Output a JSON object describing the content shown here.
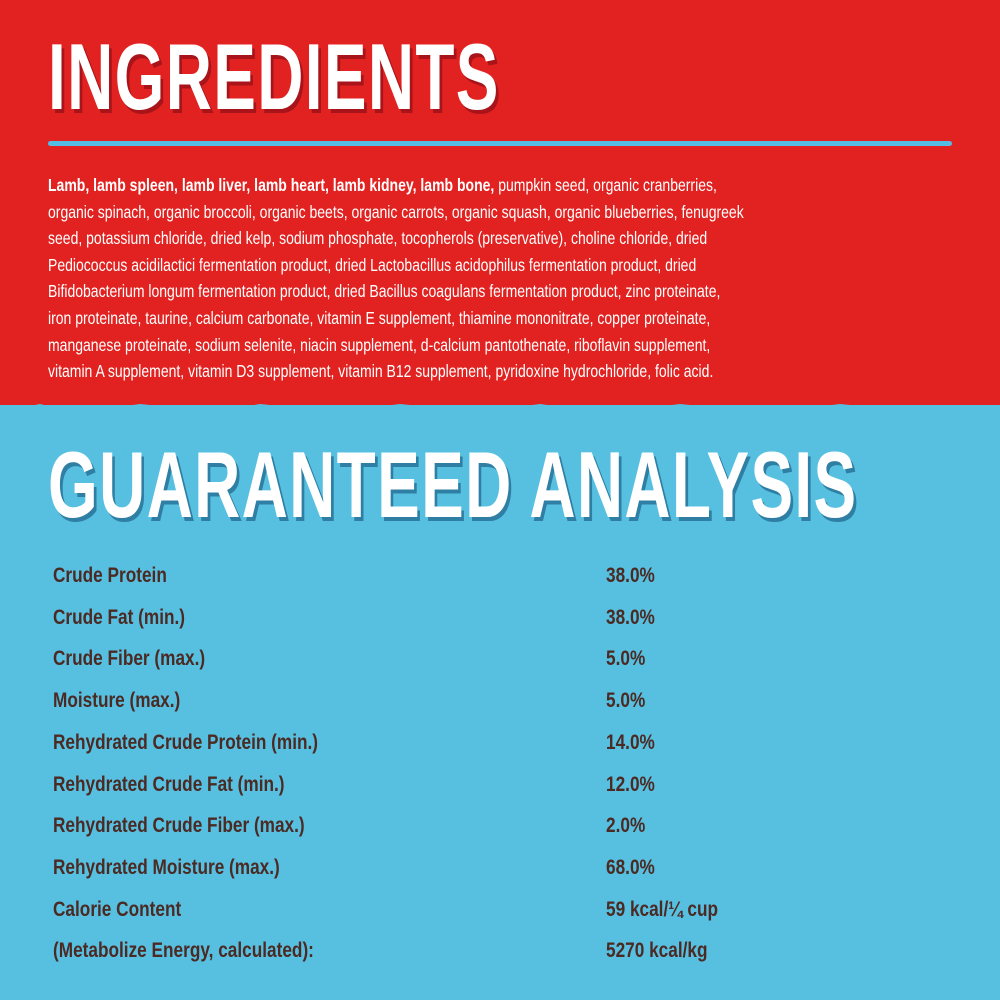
{
  "colors": {
    "top_background": "#e12220",
    "bottom_background": "#57c0e1",
    "value_text": "#4b2a24",
    "accent_rule": "#55bde3"
  },
  "ingredients": {
    "title": "INGREDIENTS",
    "bold_lead": "Lamb, lamb spleen, lamb liver, lamb heart, lamb kidney, lamb bone,",
    "lines": [
      " pumpkin seed, organic cranberries,",
      "organic spinach, organic broccoli, organic beets, organic carrots, organic squash, organic blueberries, fenugreek",
      "seed, potassium chloride, dried kelp, sodium phosphate, tocopherols (preservative), choline chloride, dried",
      "Pediococcus acidilactici fermentation product, dried Lactobacillus acidophilus fermentation product, dried",
      "Bifidobacterium longum fermentation product, dried Bacillus coagulans fermentation product, zinc proteinate,",
      "iron proteinate, taurine, calcium carbonate, vitamin E supplement, thiamine mononitrate, copper proteinate,",
      "manganese proteinate, sodium selenite, niacin supplement, d-calcium pantothenate, riboflavin supplement,",
      "vitamin A supplement, vitamin D3 supplement, vitamin B12 supplement, pyridoxine hydrochloride, folic acid."
    ]
  },
  "analysis": {
    "title": "GUARANTEED ANALYSIS",
    "rows": [
      {
        "label": "Crude Protein",
        "value": "38.0%"
      },
      {
        "label": "Crude Fat (min.)",
        "value": "38.0%"
      },
      {
        "label": "Crude Fiber (max.)",
        "value": "5.0%"
      },
      {
        "label": "Moisture (max.)",
        "value": "5.0%"
      },
      {
        "label": "Rehydrated Crude Protein (min.)",
        "value": "14.0%"
      },
      {
        "label": "Rehydrated Crude Fat (min.)",
        "value": "12.0%"
      },
      {
        "label": "Rehydrated Crude Fiber (max.)",
        "value": "2.0%"
      },
      {
        "label": "Rehydrated Moisture (max.)",
        "value": "68.0%"
      },
      {
        "label": "Calorie Content",
        "value": "59 kcal/¼ cup"
      },
      {
        "label": "(Metabolize Energy, calculated):",
        "value": "5270 kcal/kg"
      }
    ]
  }
}
